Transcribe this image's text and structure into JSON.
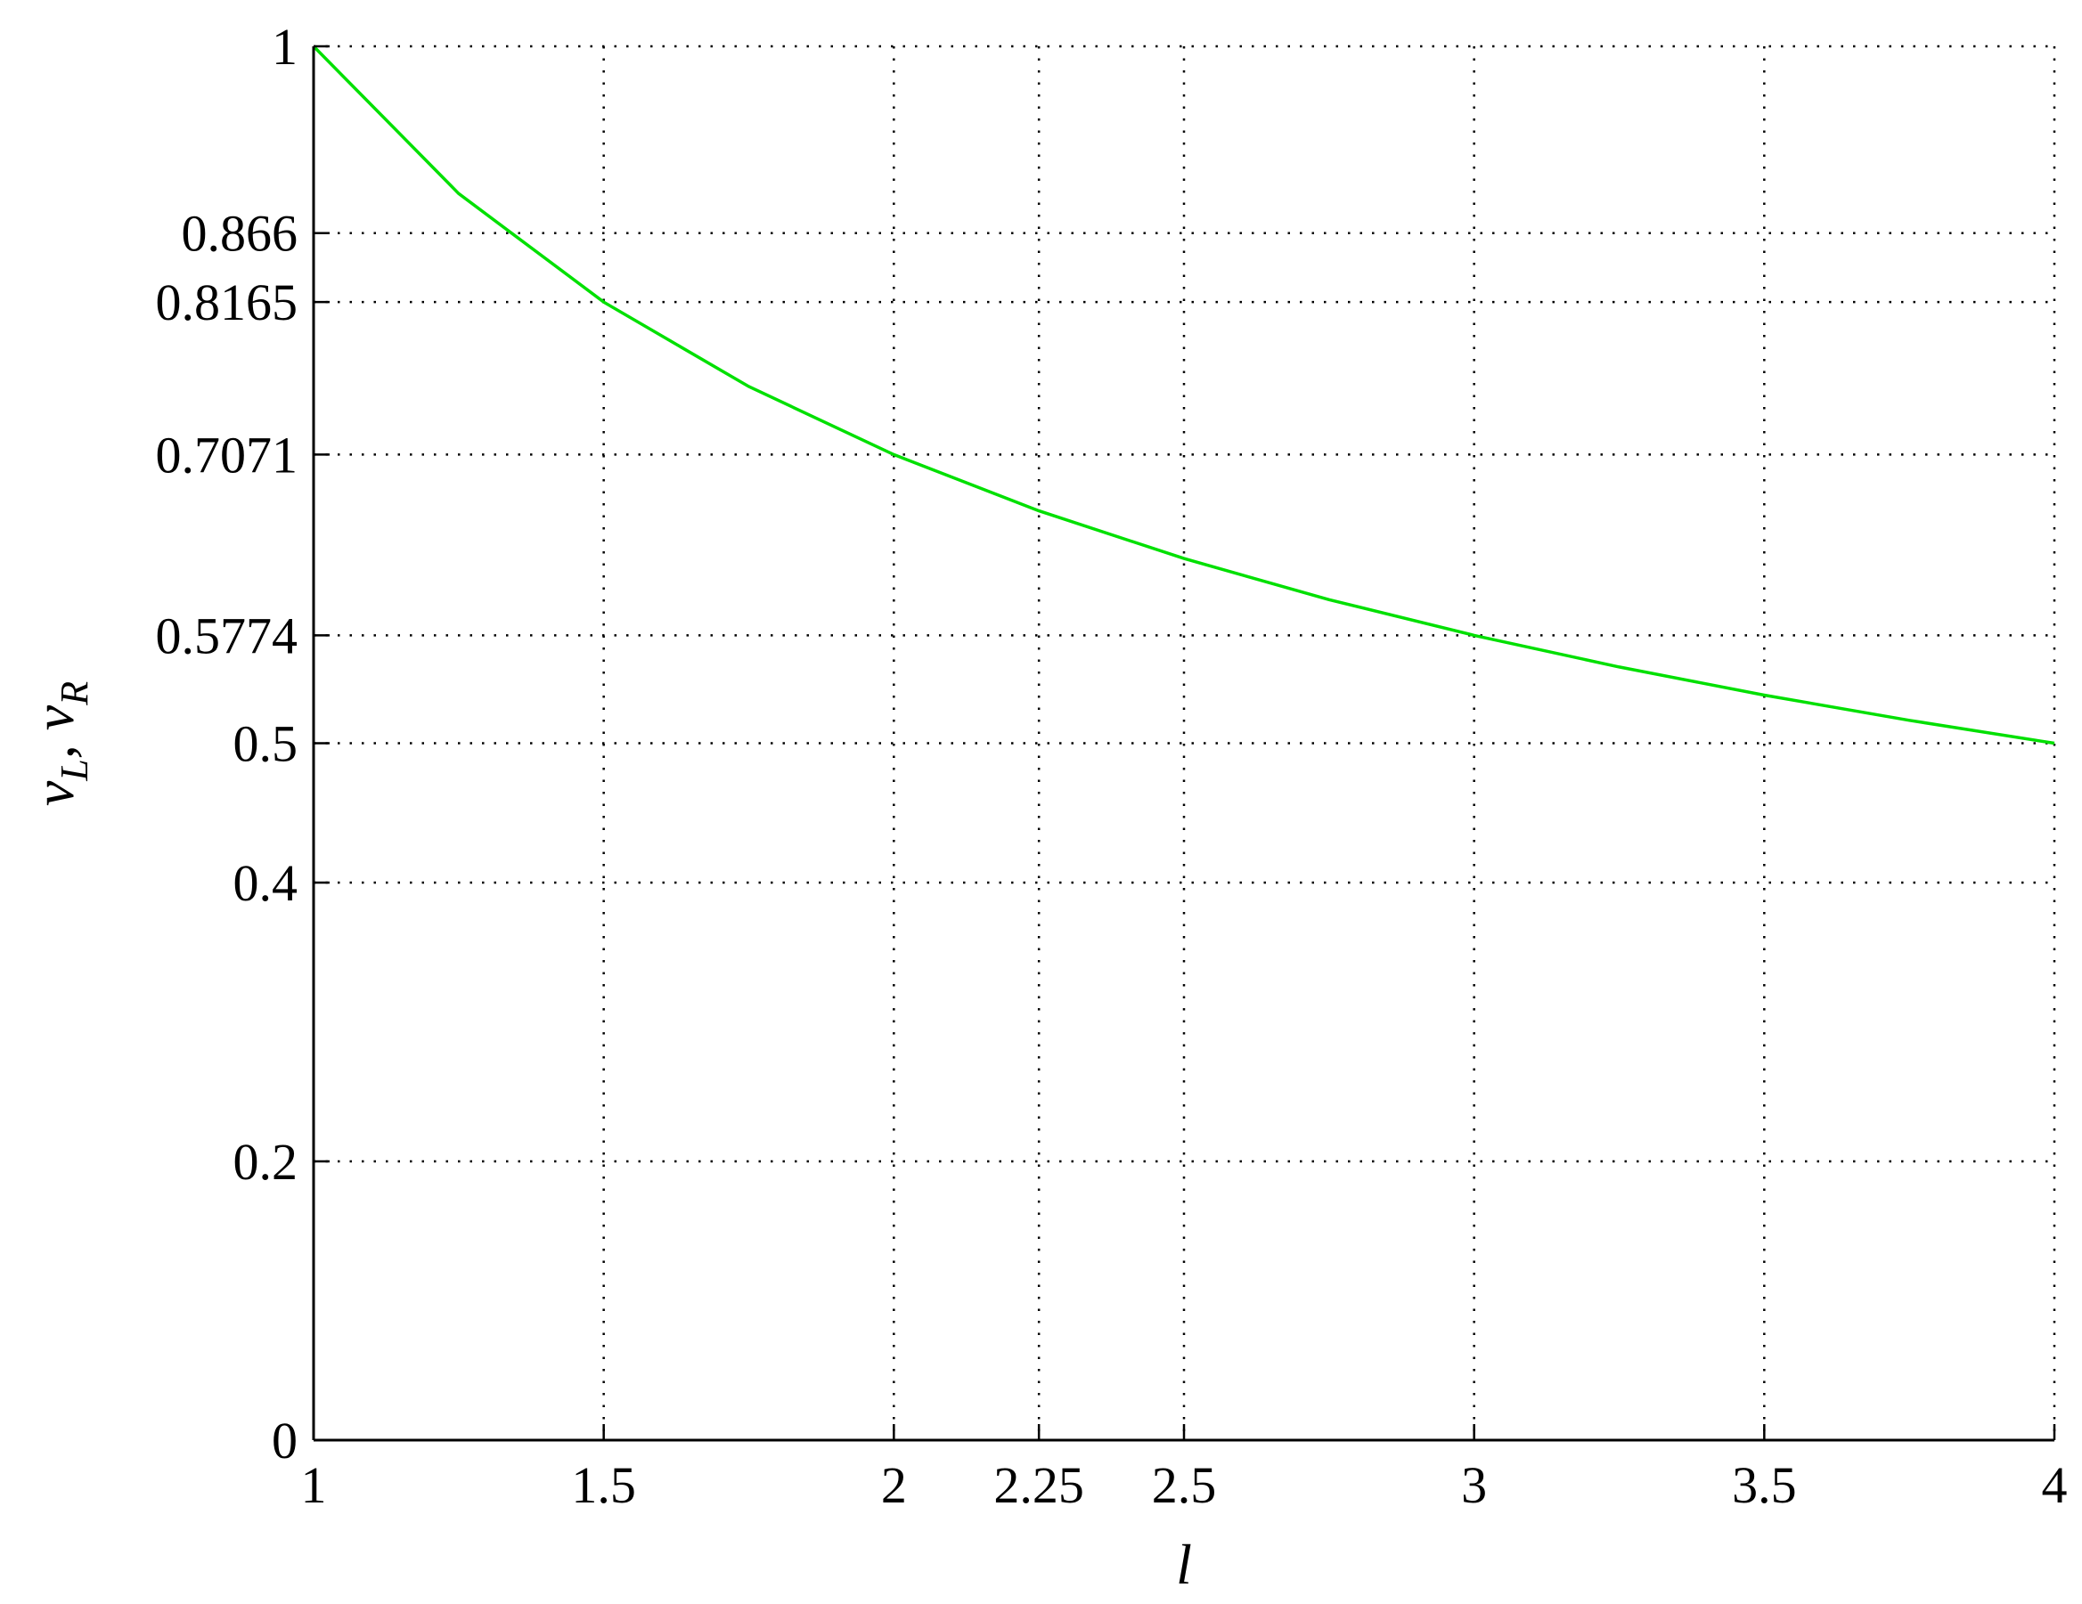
{
  "chart_data": {
    "type": "line",
    "title": "",
    "xlabel": "l",
    "ylabel": "v_L, v_R",
    "ylabel_parts": {
      "v1": "v",
      "sub1": "L",
      "sep": ", ",
      "v2": "v",
      "sub2": "R"
    },
    "xlim": [
      1,
      4
    ],
    "ylim": [
      0,
      1
    ],
    "grid": true,
    "legend": "none",
    "x_ticks": [
      1,
      1.5,
      2,
      2.25,
      2.5,
      3,
      3.5,
      4
    ],
    "x_tick_labels": [
      "1",
      "1.5",
      "2",
      "2.25",
      "2.5",
      "3",
      "3.5",
      "4"
    ],
    "y_ticks": [
      0,
      0.2,
      0.4,
      0.5,
      0.5774,
      0.7071,
      0.8165,
      0.866,
      1
    ],
    "y_tick_labels": [
      "0",
      "0.2",
      "0.4",
      "0.5",
      "0.5774",
      "0.7071",
      "0.8165",
      "0.866",
      "1"
    ],
    "series": [
      {
        "color": "#00e000",
        "x": [
          1,
          1.25,
          1.5,
          1.75,
          2,
          2.25,
          2.5,
          2.75,
          3,
          3.25,
          3.5,
          3.75,
          4
        ],
        "y": [
          1,
          0.8944,
          0.8165,
          0.7559,
          0.7071,
          0.6667,
          0.6325,
          0.603,
          0.5774,
          0.5547,
          0.5345,
          0.5164,
          0.5
        ],
        "y_offset_note": ""
      }
    ]
  }
}
